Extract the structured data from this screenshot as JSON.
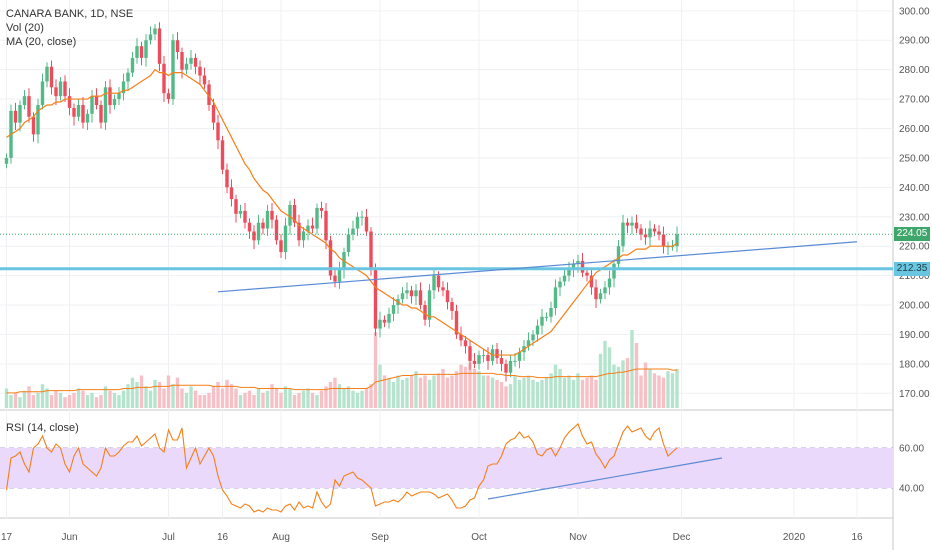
{
  "legend": {
    "symbol": "CANARA BANK, 1D, NSE",
    "vol": "Vol (20)",
    "ma": "MA (20, close)",
    "rsi": "RSI (14, close)"
  },
  "price_tags": {
    "last": "224.05",
    "level": "212.35"
  },
  "colors": {
    "up": "#53b987",
    "down": "#eb4d5c",
    "ma": "#f57f17",
    "trendline": "#5b8bd6",
    "support": "#6ac6e0",
    "last_line": "#3ea66b",
    "rsi_band": "#ebd9fb",
    "vol_up": "#b6e3cd",
    "vol_down": "#f6c0c6"
  },
  "chart_data": {
    "type": "candlestick",
    "title": "CANARA BANK, 1D, NSE",
    "y_ticks": [
      300,
      290,
      280,
      270,
      260,
      250,
      240,
      230,
      220,
      210,
      200,
      190,
      180,
      170
    ],
    "y_tick_labels": [
      "300.00",
      "290.00",
      "280.00",
      "270.00",
      "260.00",
      "250.00",
      "240.00",
      "230.00",
      "220.00",
      "210.00",
      "200.00",
      "190.00",
      "180.00",
      "170.00"
    ],
    "ylim": [
      165,
      303
    ],
    "x_tick_labels": [
      "17",
      "Jun",
      "Jul",
      "16",
      "Aug",
      "Sep",
      "Oct",
      "Nov",
      "Dec",
      "2020",
      "16"
    ],
    "x_tick_index": [
      0,
      14,
      36,
      48,
      61,
      83,
      105,
      127,
      150,
      175,
      189
    ],
    "current_price": 224.05,
    "horizontal_level": 212.35,
    "trendline": {
      "from": [
        47,
        204.5
      ],
      "to": [
        189,
        221.5
      ]
    },
    "closes": [
      250,
      266,
      262,
      268,
      271,
      264,
      258,
      268,
      276,
      281,
      274,
      271,
      276,
      271,
      267,
      264,
      268,
      262,
      265,
      271,
      268,
      262,
      274,
      268,
      270,
      272,
      276,
      279,
      284,
      288,
      284,
      290,
      292,
      294,
      282,
      272,
      270,
      290,
      286,
      280,
      282,
      284,
      281,
      278,
      275,
      268,
      262,
      256,
      246,
      240,
      236,
      231,
      232,
      228,
      225,
      222,
      228,
      226,
      232,
      229,
      222,
      218,
      227,
      234,
      228,
      222,
      225,
      227,
      226,
      233,
      232,
      222,
      210,
      208,
      212,
      218,
      224,
      226,
      230,
      230,
      225,
      212,
      192,
      195,
      194,
      197,
      200,
      202,
      204,
      205,
      203,
      205,
      200,
      195,
      205,
      210,
      206,
      205,
      201,
      198,
      190,
      188,
      186,
      181,
      180,
      183,
      183,
      181,
      185,
      182,
      180,
      177,
      181,
      181,
      184,
      186,
      188,
      190,
      193,
      196,
      196,
      199,
      206,
      208,
      210,
      212,
      214,
      215,
      211,
      210,
      206,
      202,
      204,
      206,
      209,
      214,
      220,
      228,
      227,
      228,
      226,
      224,
      223,
      226,
      225,
      224,
      220,
      220,
      220,
      224
    ],
    "ma": [
      257,
      258,
      259,
      260,
      262,
      263,
      264,
      266,
      267,
      268,
      268,
      269,
      269,
      270,
      270,
      270,
      270,
      270,
      270,
      271,
      271,
      271,
      272,
      272,
      272,
      272,
      273,
      273,
      274,
      275,
      276,
      277,
      278,
      280,
      279,
      279,
      278,
      279,
      279,
      279,
      278,
      277,
      276,
      275,
      273,
      271,
      269,
      266,
      263,
      260,
      257,
      254,
      251,
      248,
      246,
      243,
      241,
      239,
      238,
      236,
      234,
      232,
      231,
      230,
      229,
      227,
      226,
      225,
      224,
      223,
      222,
      221,
      219,
      218,
      216,
      215,
      214,
      213,
      212,
      211,
      210,
      208,
      206,
      205,
      204,
      203,
      202,
      201,
      200,
      200,
      199,
      199,
      198,
      197,
      196,
      196,
      195,
      194,
      193,
      192,
      191,
      190,
      189,
      188,
      187,
      186,
      185,
      184,
      183,
      183,
      183,
      183,
      183,
      183,
      184,
      185,
      186,
      187,
      188,
      189,
      190,
      191,
      193,
      195,
      197,
      199,
      201,
      203,
      205,
      207,
      209,
      211,
      212,
      213,
      214,
      215,
      216,
      217,
      217,
      218,
      219,
      219,
      219,
      220,
      220,
      220,
      220,
      220,
      220,
      221
    ],
    "volume": [
      18,
      12,
      14,
      10,
      16,
      20,
      12,
      14,
      22,
      18,
      12,
      16,
      14,
      10,
      12,
      14,
      18,
      16,
      12,
      14,
      10,
      12,
      20,
      16,
      14,
      12,
      16,
      22,
      28,
      24,
      30,
      20,
      16,
      26,
      24,
      18,
      30,
      22,
      28,
      18,
      14,
      20,
      16,
      12,
      12,
      14,
      20,
      24,
      18,
      26,
      22,
      18,
      12,
      14,
      16,
      12,
      18,
      14,
      16,
      22,
      18,
      14,
      20,
      18,
      12,
      14,
      16,
      18,
      14,
      12,
      16,
      20,
      24,
      28,
      22,
      18,
      20,
      16,
      14,
      16,
      18,
      22,
      70,
      40,
      30,
      28,
      24,
      30,
      26,
      28,
      30,
      34,
      28,
      30,
      26,
      30,
      32,
      36,
      28,
      30,
      34,
      40,
      38,
      42,
      36,
      34,
      30,
      30,
      28,
      26,
      24,
      20,
      22,
      30,
      26,
      28,
      30,
      26,
      24,
      26,
      28,
      32,
      40,
      36,
      28,
      30,
      26,
      32,
      26,
      28,
      30,
      26,
      50,
      62,
      56,
      40,
      38,
      44,
      46,
      72,
      60,
      30,
      42,
      36,
      32,
      30,
      28,
      34,
      32,
      36
    ],
    "vol_ma": [
      14,
      14,
      14,
      15,
      15,
      15,
      15,
      15,
      15,
      16,
      16,
      16,
      16,
      16,
      16,
      16,
      17,
      17,
      17,
      17,
      17,
      17,
      17,
      17,
      17,
      17,
      18,
      18,
      18,
      19,
      19,
      19,
      19,
      20,
      20,
      20,
      20,
      21,
      21,
      21,
      21,
      21,
      21,
      21,
      21,
      21,
      20,
      20,
      20,
      20,
      20,
      20,
      19,
      19,
      19,
      19,
      18,
      18,
      18,
      18,
      18,
      18,
      18,
      18,
      17,
      17,
      17,
      17,
      17,
      17,
      17,
      17,
      18,
      18,
      18,
      18,
      18,
      18,
      18,
      18,
      18,
      20,
      24,
      25,
      26,
      27,
      28,
      29,
      30,
      30,
      30,
      31,
      31,
      31,
      31,
      31,
      31,
      31,
      31,
      31,
      31,
      32,
      32,
      32,
      32,
      32,
      32,
      32,
      32,
      31,
      31,
      30,
      30,
      30,
      29,
      29,
      29,
      29,
      28,
      28,
      28,
      28,
      29,
      29,
      29,
      29,
      29,
      29,
      29,
      29,
      29,
      29,
      30,
      31,
      32,
      32,
      33,
      33,
      34,
      35,
      36,
      36,
      36,
      36,
      36,
      36,
      36,
      36,
      35,
      35
    ],
    "rsi": [
      39,
      55,
      56,
      58,
      52,
      48,
      60,
      62,
      66,
      60,
      58,
      62,
      60,
      52,
      48,
      56,
      60,
      52,
      50,
      48,
      46,
      50,
      60,
      56,
      56,
      58,
      61,
      63,
      63,
      66,
      61,
      63,
      65,
      67,
      60,
      58,
      69,
      64,
      64,
      70,
      50,
      55,
      60,
      52,
      56,
      60,
      56,
      46,
      39,
      36,
      32,
      31,
      30,
      32,
      31,
      28,
      29,
      28,
      30,
      29,
      29,
      28,
      31,
      32,
      29,
      33,
      30,
      31,
      30,
      38,
      33,
      30,
      32,
      44,
      41,
      46,
      47,
      48,
      45,
      44,
      42,
      40,
      31,
      32,
      33,
      33,
      34,
      33,
      35,
      38,
      36,
      37,
      38,
      38,
      38,
      37,
      35,
      36,
      37,
      34,
      30,
      30,
      31,
      34,
      35,
      41,
      44,
      51,
      52,
      52,
      56,
      62,
      64,
      65,
      68,
      65,
      66,
      63,
      57,
      56,
      59,
      60,
      56,
      60,
      65,
      68,
      70,
      72,
      66,
      62,
      63,
      57,
      54,
      50,
      54,
      56,
      62,
      68,
      71,
      68,
      69,
      70,
      66,
      64,
      68,
      70,
      62,
      56,
      58,
      60
    ],
    "rsi_ticks": [
      60,
      40
    ],
    "rsi_tick_labels": [
      "60.00",
      "40.00"
    ],
    "rsi_band": [
      40,
      60
    ],
    "rsi_trendline": {
      "from": [
        107,
        34.5
      ],
      "to": [
        159,
        55
      ]
    },
    "rsi_ylim": [
      26,
      76
    ]
  }
}
